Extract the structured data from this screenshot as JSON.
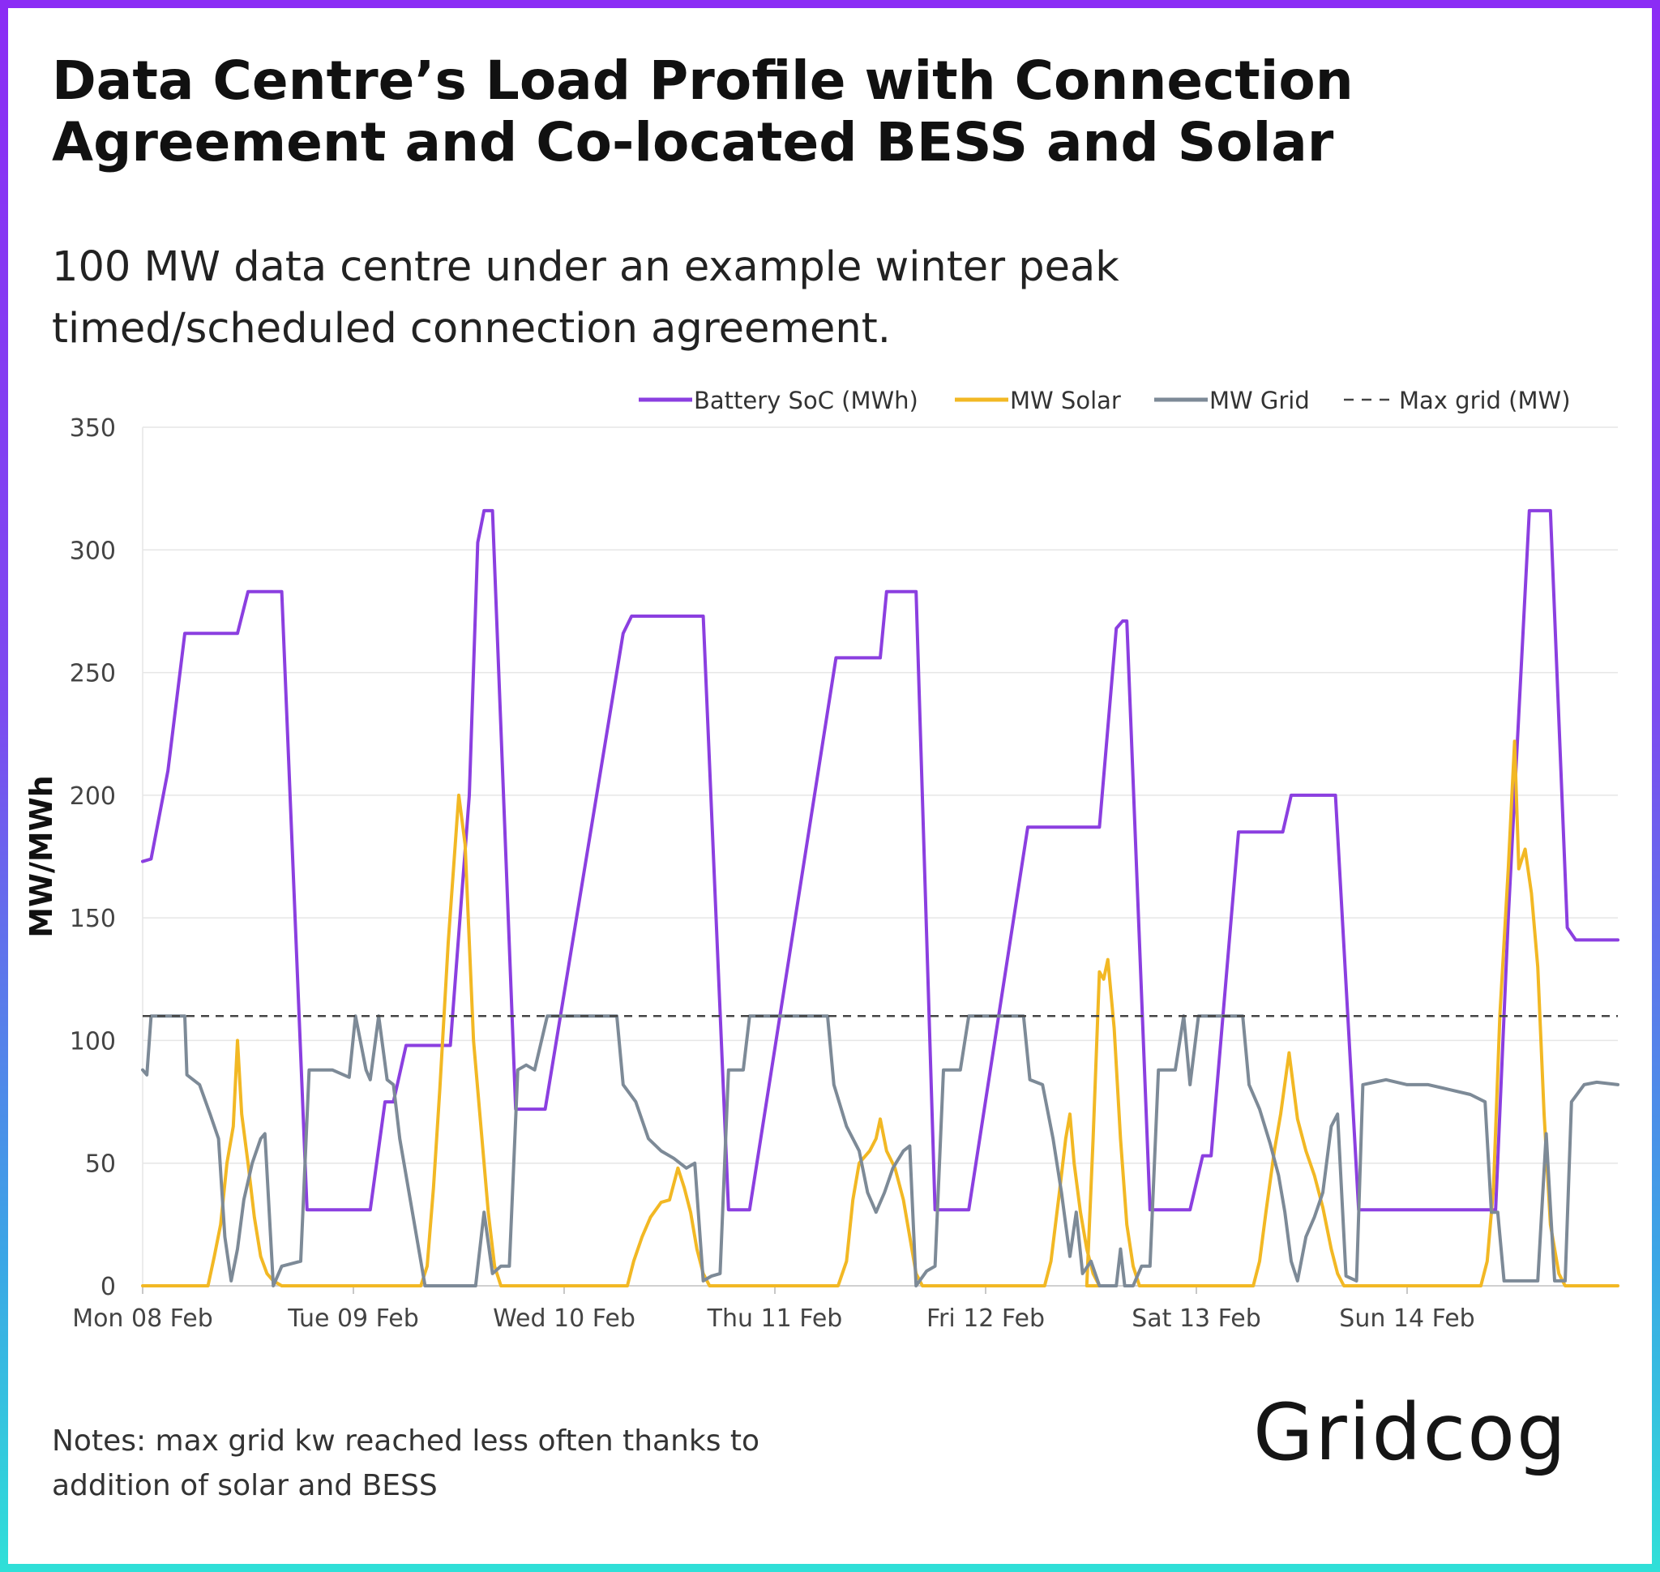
{
  "title": "Data Centre’s Load Profile with Connection Agreement and Co-located BESS and Solar",
  "subtitle": "100 MW data centre under an example winter peak timed/scheduled connection agreement.",
  "notes": "Notes: max grid kw reached less often thanks to addition of solar and BESS",
  "logo_text": "Gridcog",
  "colors": {
    "battery": "#8b3fe0",
    "solar": "#f2b824",
    "grid": "#7d8a97",
    "max_grid": "#444444",
    "border_top": "#8b2cf5",
    "border_bottom": "#2fe0d8"
  },
  "chart_data": {
    "type": "line",
    "xlabel": "",
    "ylabel": "MW/MWh",
    "ylim": [
      0,
      350
    ],
    "yticks": [
      0,
      50,
      100,
      150,
      200,
      250,
      300,
      350
    ],
    "x_unit": "days from Mon 08 Feb 00:00",
    "xlim": [
      0,
      7
    ],
    "xticks": [
      {
        "x": 0,
        "label": "Mon 08 Feb"
      },
      {
        "x": 1,
        "label": "Tue 09 Feb"
      },
      {
        "x": 2,
        "label": "Wed 10 Feb"
      },
      {
        "x": 3,
        "label": "Thu 11 Feb"
      },
      {
        "x": 4,
        "label": "Fri 12 Feb"
      },
      {
        "x": 5,
        "label": "Sat 13 Feb"
      },
      {
        "x": 6,
        "label": "Sun 14 Feb"
      }
    ],
    "grid": true,
    "legend_position": "top-right",
    "series": [
      {
        "name": "Battery SoC (MWh)",
        "style": "solid",
        "points": [
          [
            0.0,
            173
          ],
          [
            0.04,
            174
          ],
          [
            0.12,
            210
          ],
          [
            0.2,
            266
          ],
          [
            0.45,
            266
          ],
          [
            0.5,
            283
          ],
          [
            0.66,
            283
          ],
          [
            0.78,
            31
          ],
          [
            1.08,
            31
          ],
          [
            1.15,
            75
          ],
          [
            1.19,
            75
          ],
          [
            1.25,
            98
          ],
          [
            1.46,
            98
          ],
          [
            1.55,
            200
          ],
          [
            1.59,
            303
          ],
          [
            1.62,
            316
          ],
          [
            1.66,
            316
          ],
          [
            1.77,
            72
          ],
          [
            1.91,
            72
          ],
          [
            2.28,
            266
          ],
          [
            2.32,
            273
          ],
          [
            2.66,
            273
          ],
          [
            2.78,
            31
          ],
          [
            2.88,
            31
          ],
          [
            3.29,
            256
          ],
          [
            3.5,
            256
          ],
          [
            3.53,
            283
          ],
          [
            3.67,
            283
          ],
          [
            3.76,
            31
          ],
          [
            3.92,
            31
          ],
          [
            4.2,
            187
          ],
          [
            4.54,
            187
          ],
          [
            4.62,
            268
          ],
          [
            4.65,
            271
          ],
          [
            4.67,
            271
          ],
          [
            4.78,
            31
          ],
          [
            4.97,
            31
          ],
          [
            5.03,
            53
          ],
          [
            5.07,
            53
          ],
          [
            5.2,
            185
          ],
          [
            5.41,
            185
          ],
          [
            5.45,
            200
          ],
          [
            5.66,
            200
          ],
          [
            5.77,
            31
          ],
          [
            6.42,
            31
          ],
          [
            6.48,
            150
          ],
          [
            6.58,
            316
          ],
          [
            6.68,
            316
          ],
          [
            6.76,
            146
          ],
          [
            6.8,
            141
          ],
          [
            7.0,
            141
          ]
        ]
      },
      {
        "name": "MW Solar",
        "style": "solid",
        "points": [
          [
            0.0,
            0
          ],
          [
            0.31,
            0
          ],
          [
            0.34,
            12
          ],
          [
            0.37,
            25
          ],
          [
            0.4,
            50
          ],
          [
            0.43,
            65
          ],
          [
            0.45,
            100
          ],
          [
            0.47,
            70
          ],
          [
            0.5,
            50
          ],
          [
            0.53,
            28
          ],
          [
            0.56,
            12
          ],
          [
            0.59,
            5
          ],
          [
            0.62,
            2
          ],
          [
            0.66,
            0
          ],
          [
            1.32,
            0
          ],
          [
            1.35,
            8
          ],
          [
            1.38,
            40
          ],
          [
            1.41,
            80
          ],
          [
            1.45,
            140
          ],
          [
            1.5,
            200
          ],
          [
            1.53,
            180
          ],
          [
            1.57,
            100
          ],
          [
            1.61,
            60
          ],
          [
            1.64,
            30
          ],
          [
            1.67,
            8
          ],
          [
            1.7,
            0
          ],
          [
            2.3,
            0
          ],
          [
            2.33,
            10
          ],
          [
            2.37,
            20
          ],
          [
            2.41,
            28
          ],
          [
            2.46,
            34
          ],
          [
            2.5,
            35
          ],
          [
            2.54,
            48
          ],
          [
            2.57,
            40
          ],
          [
            2.6,
            30
          ],
          [
            2.63,
            15
          ],
          [
            2.66,
            5
          ],
          [
            2.69,
            0
          ],
          [
            3.3,
            0
          ],
          [
            3.34,
            10
          ],
          [
            3.37,
            35
          ],
          [
            3.4,
            50
          ],
          [
            3.45,
            55
          ],
          [
            3.48,
            60
          ],
          [
            3.5,
            68
          ],
          [
            3.53,
            55
          ],
          [
            3.57,
            48
          ],
          [
            3.61,
            35
          ],
          [
            3.64,
            20
          ],
          [
            3.67,
            5
          ],
          [
            3.7,
            0
          ],
          [
            4.28,
            0
          ],
          [
            4.31,
            10
          ],
          [
            4.35,
            38
          ],
          [
            4.38,
            60
          ],
          [
            4.4,
            70
          ],
          [
            4.42,
            50
          ],
          [
            4.45,
            30
          ],
          [
            4.48,
            15
          ],
          [
            4.51,
            5
          ],
          [
            4.54,
            0
          ],
          [
            4.48,
            0
          ],
          [
            4.51,
            60
          ],
          [
            4.54,
            128
          ],
          [
            4.56,
            125
          ],
          [
            4.58,
            133
          ],
          [
            4.61,
            105
          ],
          [
            4.64,
            60
          ],
          [
            4.67,
            25
          ],
          [
            4.7,
            8
          ],
          [
            4.73,
            0
          ],
          [
            5.27,
            0
          ],
          [
            5.3,
            10
          ],
          [
            5.33,
            30
          ],
          [
            5.37,
            55
          ],
          [
            5.4,
            70
          ],
          [
            5.44,
            95
          ],
          [
            5.48,
            68
          ],
          [
            5.52,
            55
          ],
          [
            5.56,
            45
          ],
          [
            5.6,
            32
          ],
          [
            5.64,
            15
          ],
          [
            5.67,
            5
          ],
          [
            5.7,
            0
          ],
          [
            6.35,
            0
          ],
          [
            6.38,
            10
          ],
          [
            6.41,
            40
          ],
          [
            6.44,
            110
          ],
          [
            6.48,
            170
          ],
          [
            6.51,
            222
          ],
          [
            6.53,
            170
          ],
          [
            6.56,
            178
          ],
          [
            6.59,
            160
          ],
          [
            6.62,
            130
          ],
          [
            6.65,
            70
          ],
          [
            6.68,
            25
          ],
          [
            6.72,
            5
          ],
          [
            6.75,
            0
          ],
          [
            7.0,
            0
          ]
        ]
      },
      {
        "name": "MW Grid",
        "style": "solid",
        "points": [
          [
            0.0,
            88
          ],
          [
            0.02,
            86
          ],
          [
            0.04,
            110
          ],
          [
            0.2,
            110
          ],
          [
            0.21,
            86
          ],
          [
            0.27,
            82
          ],
          [
            0.32,
            70
          ],
          [
            0.36,
            60
          ],
          [
            0.39,
            20
          ],
          [
            0.42,
            2
          ],
          [
            0.45,
            15
          ],
          [
            0.48,
            35
          ],
          [
            0.52,
            50
          ],
          [
            0.56,
            60
          ],
          [
            0.58,
            62
          ],
          [
            0.62,
            0
          ],
          [
            0.66,
            8
          ],
          [
            0.75,
            10
          ],
          [
            0.79,
            88
          ],
          [
            0.9,
            88
          ],
          [
            0.98,
            85
          ],
          [
            1.01,
            110
          ],
          [
            1.06,
            88
          ],
          [
            1.08,
            84
          ],
          [
            1.12,
            110
          ],
          [
            1.16,
            84
          ],
          [
            1.19,
            82
          ],
          [
            1.22,
            60
          ],
          [
            1.26,
            40
          ],
          [
            1.3,
            20
          ],
          [
            1.34,
            0
          ],
          [
            1.58,
            0
          ],
          [
            1.62,
            30
          ],
          [
            1.66,
            5
          ],
          [
            1.7,
            8
          ],
          [
            1.74,
            8
          ],
          [
            1.78,
            88
          ],
          [
            1.82,
            90
          ],
          [
            1.86,
            88
          ],
          [
            1.92,
            110
          ],
          [
            2.25,
            110
          ],
          [
            2.28,
            82
          ],
          [
            2.34,
            75
          ],
          [
            2.4,
            60
          ],
          [
            2.46,
            55
          ],
          [
            2.52,
            52
          ],
          [
            2.58,
            48
          ],
          [
            2.62,
            50
          ],
          [
            2.66,
            2
          ],
          [
            2.7,
            4
          ],
          [
            2.74,
            5
          ],
          [
            2.78,
            88
          ],
          [
            2.85,
            88
          ],
          [
            2.88,
            110
          ],
          [
            3.25,
            110
          ],
          [
            3.28,
            82
          ],
          [
            3.34,
            65
          ],
          [
            3.4,
            55
          ],
          [
            3.44,
            38
          ],
          [
            3.48,
            30
          ],
          [
            3.52,
            38
          ],
          [
            3.56,
            48
          ],
          [
            3.61,
            55
          ],
          [
            3.64,
            57
          ],
          [
            3.67,
            0
          ],
          [
            3.72,
            6
          ],
          [
            3.76,
            8
          ],
          [
            3.8,
            88
          ],
          [
            3.88,
            88
          ],
          [
            3.92,
            110
          ],
          [
            4.18,
            110
          ],
          [
            4.21,
            84
          ],
          [
            4.27,
            82
          ],
          [
            4.32,
            60
          ],
          [
            4.36,
            38
          ],
          [
            4.4,
            12
          ],
          [
            4.43,
            30
          ],
          [
            4.46,
            5
          ],
          [
            4.5,
            10
          ],
          [
            4.54,
            0
          ],
          [
            4.62,
            0
          ],
          [
            4.64,
            15
          ],
          [
            4.66,
            0
          ],
          [
            4.7,
            0
          ],
          [
            4.74,
            8
          ],
          [
            4.78,
            8
          ],
          [
            4.82,
            88
          ],
          [
            4.9,
            88
          ],
          [
            4.94,
            110
          ],
          [
            4.97,
            82
          ],
          [
            5.01,
            110
          ],
          [
            5.22,
            110
          ],
          [
            5.25,
            82
          ],
          [
            5.3,
            72
          ],
          [
            5.35,
            58
          ],
          [
            5.39,
            45
          ],
          [
            5.42,
            30
          ],
          [
            5.45,
            10
          ],
          [
            5.48,
            2
          ],
          [
            5.52,
            20
          ],
          [
            5.56,
            28
          ],
          [
            5.6,
            38
          ],
          [
            5.64,
            65
          ],
          [
            5.67,
            70
          ],
          [
            5.71,
            4
          ],
          [
            5.76,
            2
          ],
          [
            5.79,
            82
          ],
          [
            5.9,
            84
          ],
          [
            6.0,
            82
          ],
          [
            6.1,
            82
          ],
          [
            6.2,
            80
          ],
          [
            6.3,
            78
          ],
          [
            6.37,
            75
          ],
          [
            6.4,
            30
          ],
          [
            6.43,
            30
          ],
          [
            6.46,
            2
          ],
          [
            6.62,
            2
          ],
          [
            6.66,
            62
          ],
          [
            6.7,
            2
          ],
          [
            6.75,
            2
          ],
          [
            6.78,
            75
          ],
          [
            6.84,
            82
          ],
          [
            6.9,
            83
          ],
          [
            7.0,
            82
          ]
        ]
      },
      {
        "name": "Max grid (MW)",
        "style": "dashed",
        "points": [
          [
            0.0,
            110
          ],
          [
            7.0,
            110
          ]
        ]
      }
    ]
  }
}
